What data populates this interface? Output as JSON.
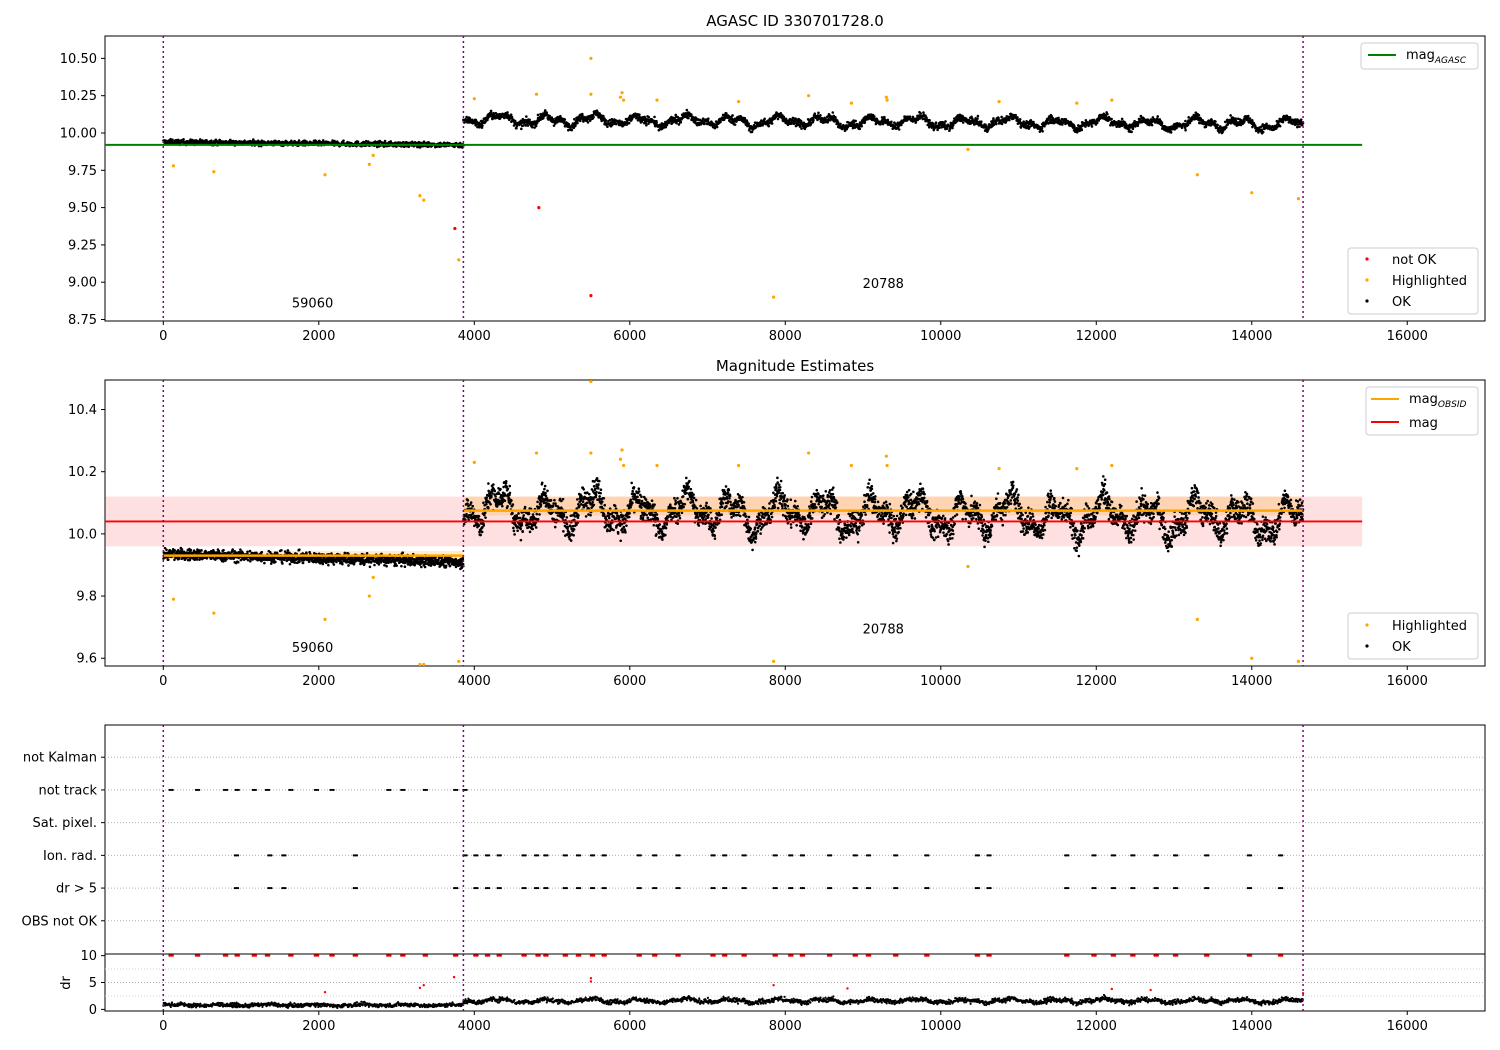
{
  "chart_data": [
    {
      "type": "scatter",
      "title": "AGASC ID 330701728.0",
      "xlim": [
        -750,
        17000
      ],
      "ylim": [
        8.74,
        10.65
      ],
      "xticks": [
        0,
        2000,
        4000,
        6000,
        8000,
        10000,
        12000,
        14000,
        16000
      ],
      "yticks": [
        8.75,
        9.0,
        9.25,
        9.5,
        9.75,
        10.0,
        10.25,
        10.5
      ],
      "yticklabels": [
        "8.75",
        "9.00",
        "9.25",
        "9.50",
        "9.75",
        "10.00",
        "10.25",
        "10.50"
      ],
      "vlines": [
        0,
        3860,
        14660
      ],
      "hline": {
        "name": "mag",
        "sub": "AGASC",
        "y": 9.92,
        "xmin": -750,
        "xmax": 15420,
        "color": "#008000"
      },
      "obsid_labels": [
        {
          "text": "59060",
          "x": 1920,
          "y": 8.83
        },
        {
          "text": "20788",
          "x": 9260,
          "y": 8.96
        }
      ],
      "segments": [
        {
          "x0": 0,
          "x1": 3860,
          "base": 9.94,
          "spread": 0.012,
          "trend": -0.02,
          "amp": 0.0
        },
        {
          "x0": 3860,
          "x1": 14660,
          "base": 10.09,
          "spread": 0.018,
          "trend": -0.03,
          "amp": 0.05
        }
      ],
      "highlighted": [
        [
          130,
          9.78
        ],
        [
          650,
          9.74
        ],
        [
          2080,
          9.72
        ],
        [
          2650,
          9.79
        ],
        [
          2700,
          9.85
        ],
        [
          3300,
          9.58
        ],
        [
          3350,
          9.55
        ],
        [
          3800,
          9.15
        ],
        [
          4000,
          10.23
        ],
        [
          4800,
          10.26
        ],
        [
          5500,
          10.5
        ],
        [
          5500,
          10.26
        ],
        [
          5880,
          10.24
        ],
        [
          5900,
          10.27
        ],
        [
          5920,
          10.22
        ],
        [
          6350,
          10.22
        ],
        [
          7400,
          10.21
        ],
        [
          7850,
          8.9
        ],
        [
          8300,
          10.25
        ],
        [
          8850,
          10.2
        ],
        [
          9300,
          10.24
        ],
        [
          9310,
          10.22
        ],
        [
          10350,
          9.89
        ],
        [
          10750,
          10.21
        ],
        [
          11750,
          10.2
        ],
        [
          12200,
          10.22
        ],
        [
          13300,
          9.72
        ],
        [
          14000,
          9.6
        ],
        [
          14600,
          9.56
        ]
      ],
      "not_ok": [
        [
          3750,
          9.36
        ],
        [
          4830,
          9.5
        ],
        [
          5500,
          8.91
        ]
      ],
      "legends": [
        {
          "placement": "upper-right",
          "entries": [
            {
              "label": "mag",
              "sub": "AGASC",
              "marker": "line",
              "color": "#008000"
            }
          ]
        },
        {
          "placement": "lower-right",
          "entries": [
            {
              "label": "not OK",
              "marker": "dot",
              "color": "#ff0000"
            },
            {
              "label": "Highlighted",
              "marker": "dot",
              "color": "#ffa500"
            },
            {
              "label": "OK",
              "marker": "dot",
              "color": "#000000"
            }
          ]
        }
      ]
    },
    {
      "type": "scatter",
      "title": "Magnitude Estimates",
      "xlim": [
        -750,
        17000
      ],
      "ylim": [
        9.575,
        10.495
      ],
      "xticks": [
        0,
        2000,
        4000,
        6000,
        8000,
        10000,
        12000,
        14000,
        16000
      ],
      "yticks": [
        9.6,
        9.8,
        10.0,
        10.2,
        10.4
      ],
      "yticklabels": [
        "9.6",
        "9.8",
        "10.0",
        "10.2",
        "10.4"
      ],
      "vlines": [
        0,
        3860,
        14660
      ],
      "mag_line": {
        "name": "mag",
        "y": 10.04,
        "band": [
          9.96,
          10.12
        ],
        "xmin": -750,
        "xmax": 15420,
        "color": "#ff0000"
      },
      "obsid_lines": [
        {
          "name": "mag",
          "sub": "OBSID",
          "x0": 0,
          "x1": 3860,
          "y": 9.93,
          "band": [
            9.92,
            9.945
          ],
          "color": "#ffa500"
        },
        {
          "name": "mag",
          "sub": "OBSID",
          "x0": 3860,
          "x1": 14660,
          "y": 10.075,
          "band": [
            10.06,
            10.12
          ],
          "color": "#ffa500"
        }
      ],
      "obsid_labels": [
        {
          "text": "59060",
          "x": 1920,
          "y": 9.62
        },
        {
          "text": "20788",
          "x": 9260,
          "y": 9.68
        }
      ],
      "segments": [
        {
          "x0": 0,
          "x1": 3860,
          "base": 9.935,
          "spread": 0.013,
          "trend": -0.025,
          "amp": 0.0
        },
        {
          "x0": 3860,
          "x1": 14660,
          "base": 10.08,
          "spread": 0.03,
          "trend": -0.03,
          "amp": 0.08
        }
      ],
      "highlighted": [
        [
          130,
          9.79
        ],
        [
          650,
          9.745
        ],
        [
          2080,
          9.725
        ],
        [
          2650,
          9.8
        ],
        [
          2700,
          9.86
        ],
        [
          3300,
          9.58
        ],
        [
          3350,
          9.58
        ],
        [
          3800,
          9.59
        ],
        [
          4000,
          10.23
        ],
        [
          4800,
          10.26
        ],
        [
          5500,
          10.49
        ],
        [
          5500,
          10.26
        ],
        [
          5880,
          10.24
        ],
        [
          5900,
          10.27
        ],
        [
          5920,
          10.22
        ],
        [
          6350,
          10.22
        ],
        [
          7400,
          10.22
        ],
        [
          7850,
          9.59
        ],
        [
          8300,
          10.26
        ],
        [
          8850,
          10.22
        ],
        [
          9300,
          10.25
        ],
        [
          9310,
          10.22
        ],
        [
          10350,
          9.895
        ],
        [
          10750,
          10.21
        ],
        [
          11750,
          10.21
        ],
        [
          12200,
          10.22
        ],
        [
          13300,
          9.725
        ],
        [
          14000,
          9.6
        ],
        [
          14600,
          9.59
        ]
      ],
      "legends": [
        {
          "placement": "upper-right",
          "entries": [
            {
              "label": "mag",
              "sub": "OBSID",
              "marker": "line",
              "color": "#ffa500"
            },
            {
              "label": "mag",
              "marker": "line",
              "color": "#ff0000"
            }
          ]
        },
        {
          "placement": "lower-right",
          "entries": [
            {
              "label": "Highlighted",
              "marker": "dot",
              "color": "#ffa500"
            },
            {
              "label": "OK",
              "marker": "dot",
              "color": "#000000"
            }
          ]
        }
      ]
    },
    {
      "type": "scatter",
      "xlim": [
        -750,
        17000
      ],
      "xticks": [
        0,
        2000,
        4000,
        6000,
        8000,
        10000,
        12000,
        14000,
        16000
      ],
      "vlines": [
        0,
        3860,
        14660
      ],
      "flag_rows": [
        "not Kalman",
        "not track",
        "Sat. pixel.",
        "Ion. rad.",
        "dr > 5",
        "OBS not OK"
      ],
      "flag_events": {
        "not track": [
          80,
          420,
          780,
          930,
          1150,
          1320,
          1620,
          1950,
          2150,
          2880,
          3060,
          3350,
          3740,
          3860
        ],
        "Sat. pixel.": [],
        "not Kalman": [],
        "OBS not OK": [],
        "Ion. rad.": [
          920,
          1350,
          1530,
          2450,
          3860,
          4000,
          4150,
          4300,
          4620,
          4780,
          4900,
          5150,
          5320,
          5500,
          5650,
          6100,
          6300,
          6600,
          7050,
          7200,
          7450,
          7850,
          8050,
          8200,
          8550,
          8880,
          9050,
          9400,
          9800,
          10450,
          10600,
          11600,
          11950,
          12200,
          12450,
          12750,
          13000,
          13400,
          13950,
          14350
        ],
        "dr > 5": [
          920,
          1350,
          1530,
          2450,
          3740,
          4000,
          4150,
          4300,
          4620,
          4780,
          4900,
          5150,
          5320,
          5500,
          5650,
          6100,
          6300,
          6600,
          7050,
          7200,
          7450,
          7850,
          8050,
          8200,
          8550,
          8880,
          9050,
          9400,
          9800,
          10450,
          10600,
          11600,
          11950,
          12200,
          12450,
          12750,
          13000,
          13400,
          13950,
          14350
        ]
      }
    },
    {
      "type": "scatter",
      "ylabel": "dr",
      "xlim": [
        -750,
        17000
      ],
      "ylim": [
        -0.3,
        10.3
      ],
      "xticks": [
        0,
        2000,
        4000,
        6000,
        8000,
        10000,
        12000,
        14000,
        16000
      ],
      "yticks": [
        0,
        5,
        10
      ],
      "vlines": [
        0,
        3860,
        14660
      ],
      "segments": [
        {
          "x0": 0,
          "x1": 3860,
          "base": 0.8,
          "spread": 0.5,
          "amp": 0.2
        },
        {
          "x0": 3860,
          "x1": 14660,
          "base": 1.6,
          "spread": 0.6,
          "amp": 0.5
        }
      ],
      "clipped_red_x": [
        80,
        420,
        780,
        930,
        1150,
        1320,
        1620,
        1950,
        2150,
        2450,
        2880,
        3060,
        3350,
        3740,
        4000,
        4150,
        4300,
        4620,
        4800,
        4900,
        5150,
        5320,
        5500,
        5650,
        6100,
        6300,
        6600,
        7050,
        7200,
        7450,
        7850,
        8050,
        8200,
        8550,
        8880,
        9050,
        9400,
        9800,
        10450,
        10600,
        11600,
        11950,
        12200,
        12450,
        12750,
        13000,
        13400,
        13950,
        14350
      ],
      "red_points": [
        [
          2080,
          3.2
        ],
        [
          3300,
          4.0
        ],
        [
          3350,
          4.5
        ],
        [
          3740,
          6.0
        ],
        [
          5500,
          5.8
        ],
        [
          5500,
          5.2
        ],
        [
          7850,
          4.5
        ],
        [
          8800,
          3.9
        ],
        [
          12200,
          3.8
        ],
        [
          12700,
          3.6
        ],
        [
          14660,
          3.0
        ]
      ]
    }
  ]
}
